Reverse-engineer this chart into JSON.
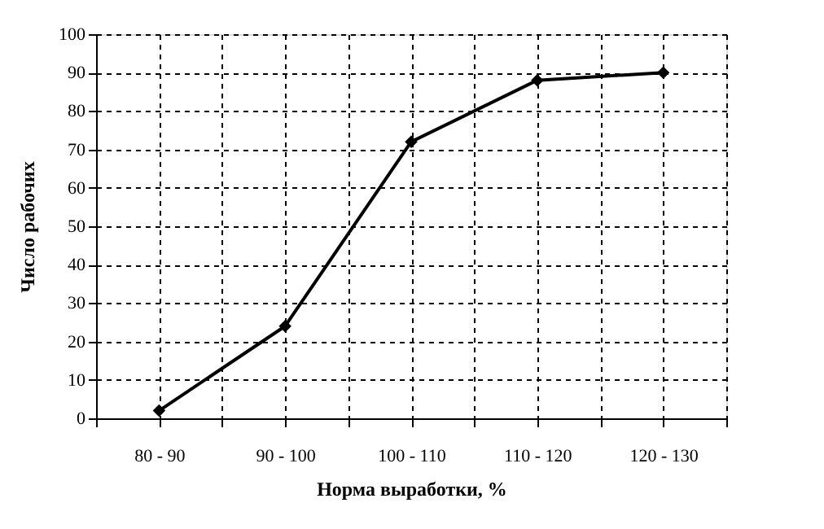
{
  "chart_data": {
    "type": "line",
    "xlabel": "Норма выработки, %",
    "ylabel": "Число рабочих",
    "categories": [
      "80 - 90",
      "90 - 100",
      "100 - 110",
      "110 - 120",
      "120 - 130"
    ],
    "series": [
      {
        "color": "#000000",
        "values": [
          2,
          24,
          72,
          88,
          90
        ]
      }
    ],
    "ylim": [
      0,
      100
    ],
    "yticks": [
      0,
      10,
      20,
      30,
      40,
      50,
      60,
      70,
      80,
      90,
      100
    ],
    "grid": true,
    "marker": "diamond",
    "line_style": "solid"
  }
}
